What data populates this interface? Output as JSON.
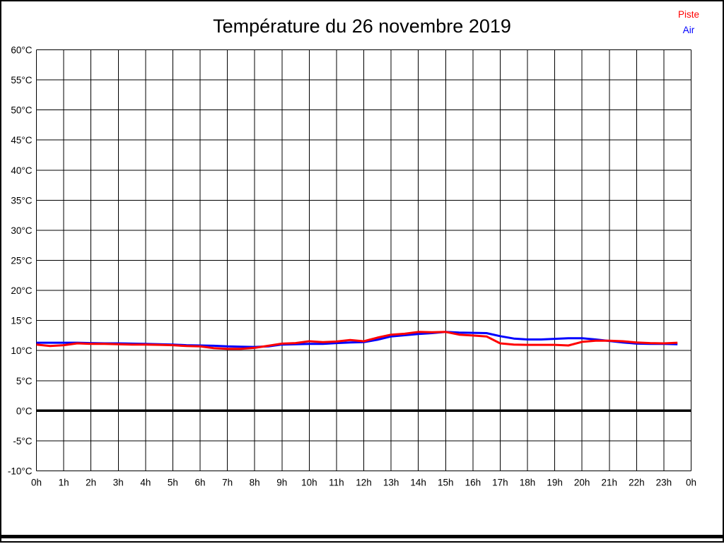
{
  "header": {
    "title": "Température du 26 novembre 2019"
  },
  "legend": {
    "piste_label": "Piste",
    "air_label": "Air"
  },
  "colors": {
    "piste": "#ff0000",
    "air": "#0000ff",
    "grid": "#000000",
    "text": "#000000",
    "background": "#ffffff"
  },
  "chart_data": {
    "type": "line",
    "title": "Température du 26 novembre 2019",
    "xlabel": "",
    "ylabel": "",
    "xlim": [
      0,
      24
    ],
    "ylim": [
      -10,
      60
    ],
    "y_step": 5,
    "grid": "on",
    "zero_line_bold": true,
    "legend_position": "top-right",
    "x_tick_labels": [
      "0h",
      "1h",
      "2h",
      "3h",
      "4h",
      "5h",
      "6h",
      "7h",
      "8h",
      "9h",
      "10h",
      "11h",
      "12h",
      "13h",
      "14h",
      "15h",
      "16h",
      "17h",
      "18h",
      "19h",
      "20h",
      "21h",
      "22h",
      "23h",
      "0h"
    ],
    "x_tick_values": [
      0,
      1,
      2,
      3,
      4,
      5,
      6,
      7,
      8,
      9,
      10,
      11,
      12,
      13,
      14,
      15,
      16,
      17,
      18,
      19,
      20,
      21,
      22,
      23,
      24
    ],
    "y_tick_labels": [
      "60°C",
      "55°C",
      "50°C",
      "45°C",
      "40°C",
      "35°C",
      "30°C",
      "25°C",
      "20°C",
      "15°C",
      "10°C",
      "5°C",
      "0°C",
      "-5°C",
      "-10°C"
    ],
    "y_tick_values": [
      60,
      55,
      50,
      45,
      40,
      35,
      30,
      25,
      20,
      15,
      10,
      5,
      0,
      -5,
      -10
    ],
    "x_hours": [
      0,
      0.5,
      1,
      1.5,
      2,
      2.5,
      3,
      3.5,
      4,
      4.5,
      5,
      5.5,
      6,
      6.5,
      7,
      7.5,
      8,
      8.5,
      9,
      9.5,
      10,
      10.5,
      11,
      11.5,
      12,
      12.5,
      13,
      13.5,
      14,
      14.5,
      15,
      15.5,
      16,
      16.5,
      17,
      17.5,
      18,
      18.5,
      19,
      19.5,
      20,
      20.5,
      21,
      21.5,
      22,
      22.5,
      23,
      23.5
    ],
    "series": [
      {
        "name": "Air",
        "color": "#0000ff",
        "values": [
          11.3,
          11.3,
          11.3,
          11.3,
          11.25,
          11.2,
          11.2,
          11.15,
          11.1,
          11.05,
          11.0,
          10.9,
          10.85,
          10.8,
          10.7,
          10.65,
          10.6,
          10.7,
          11.0,
          11.05,
          11.1,
          11.1,
          11.25,
          11.35,
          11.4,
          11.8,
          12.35,
          12.55,
          12.75,
          12.9,
          13.1,
          13.0,
          12.95,
          12.9,
          12.4,
          12.0,
          11.85,
          11.85,
          11.95,
          12.05,
          12.05,
          11.85,
          11.6,
          11.35,
          11.15,
          11.1,
          11.1,
          11.05
        ]
      },
      {
        "name": "Piste",
        "color": "#ff0000",
        "values": [
          11.0,
          10.75,
          10.9,
          11.2,
          11.1,
          11.1,
          11.05,
          11.0,
          11.0,
          10.95,
          10.9,
          10.75,
          10.7,
          10.4,
          10.3,
          10.3,
          10.45,
          10.8,
          11.15,
          11.25,
          11.55,
          11.4,
          11.5,
          11.75,
          11.55,
          12.15,
          12.65,
          12.8,
          13.1,
          13.05,
          13.1,
          12.65,
          12.5,
          12.35,
          11.2,
          11.0,
          10.95,
          10.95,
          10.95,
          10.85,
          11.45,
          11.65,
          11.65,
          11.55,
          11.35,
          11.25,
          11.2,
          11.3
        ]
      }
    ]
  }
}
